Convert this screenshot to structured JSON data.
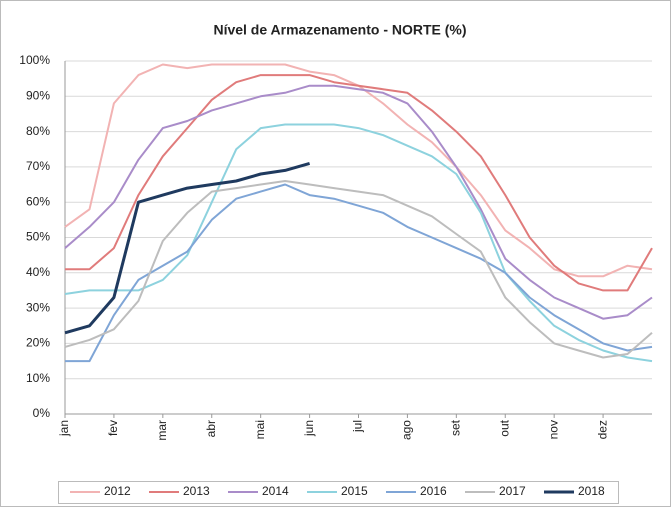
{
  "chart_data": {
    "type": "line",
    "title": "Nível de Armazenamento - NORTE (%)",
    "categories": [
      "jan",
      null,
      "fev",
      null,
      "mar",
      null,
      "abr",
      null,
      "mai",
      null,
      "jun",
      null,
      "jul",
      null,
      "ago",
      null,
      "set",
      null,
      "out",
      null,
      "nov",
      null,
      "dez",
      null,
      null
    ],
    "series": [
      {
        "name": "2012",
        "color": "#f2b3b3",
        "values": [
          53,
          58,
          88,
          96,
          99,
          98,
          99,
          99,
          99,
          99,
          97,
          96,
          93,
          88,
          82,
          77,
          70,
          62,
          52,
          47,
          41,
          39,
          39,
          42,
          41
        ]
      },
      {
        "name": "2013",
        "color": "#e07b7b",
        "values": [
          41,
          41,
          47,
          62,
          73,
          81,
          89,
          94,
          96,
          96,
          96,
          94,
          93,
          92,
          91,
          86,
          80,
          73,
          62,
          50,
          42,
          37,
          35,
          35,
          47
        ]
      },
      {
        "name": "2014",
        "color": "#a98cc9",
        "values": [
          47,
          53,
          60,
          72,
          81,
          83,
          86,
          88,
          90,
          91,
          93,
          93,
          92,
          91,
          88,
          80,
          70,
          58,
          44,
          38,
          33,
          30,
          27,
          28,
          33
        ]
      },
      {
        "name": "2015",
        "color": "#8dd2de",
        "values": [
          34,
          35,
          35,
          35,
          38,
          45,
          60,
          75,
          81,
          82,
          82,
          82,
          81,
          79,
          76,
          73,
          68,
          57,
          40,
          32,
          25,
          21,
          18,
          16,
          15
        ]
      },
      {
        "name": "2016",
        "color": "#7fa5d6",
        "values": [
          15,
          15,
          28,
          38,
          42,
          46,
          55,
          61,
          63,
          65,
          62,
          61,
          59,
          57,
          53,
          50,
          47,
          44,
          40,
          33,
          28,
          24,
          20,
          18,
          19
        ]
      },
      {
        "name": "2017",
        "color": "#bdbdbd",
        "values": [
          19,
          21,
          24,
          32,
          49,
          57,
          63,
          64,
          65,
          66,
          65,
          64,
          63,
          62,
          59,
          56,
          51,
          46,
          33,
          26,
          20,
          18,
          16,
          17,
          23
        ]
      },
      {
        "name": "2018",
        "color": "#1f3a5f",
        "values": [
          23,
          25,
          33,
          60,
          62,
          64,
          65,
          66,
          68,
          69,
          71,
          null,
          null,
          null,
          null,
          null,
          null,
          null,
          null,
          null,
          null,
          null,
          null,
          null,
          null
        ]
      }
    ],
    "ylim": [
      0,
      100
    ],
    "yticks": [
      {
        "value": 0,
        "label": "0%"
      },
      {
        "value": 10,
        "label": "10%"
      },
      {
        "value": 20,
        "label": "20%"
      },
      {
        "value": 30,
        "label": "30%"
      },
      {
        "value": 40,
        "label": "40%"
      },
      {
        "value": 50,
        "label": "50%"
      },
      {
        "value": 60,
        "label": "60%"
      },
      {
        "value": 70,
        "label": "70%"
      },
      {
        "value": 80,
        "label": "80%"
      },
      {
        "value": 90,
        "label": "90%"
      },
      {
        "value": 100,
        "label": "100%"
      }
    ],
    "grid": true
  }
}
